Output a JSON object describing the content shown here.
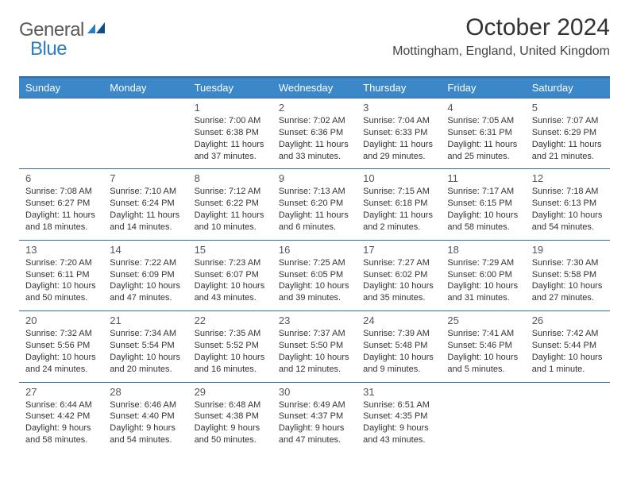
{
  "meta": {
    "logo_general": "General",
    "logo_blue": "Blue",
    "month_title": "October 2024",
    "location": "Mottingham, England, United Kingdom"
  },
  "colors": {
    "header_bg": "#3b87c8",
    "header_border": "#2f6aa0",
    "logo_blue": "#2a7dc0",
    "text": "#333333"
  },
  "day_names": [
    "Sunday",
    "Monday",
    "Tuesday",
    "Wednesday",
    "Thursday",
    "Friday",
    "Saturday"
  ],
  "weeks": [
    [
      null,
      null,
      {
        "n": "1",
        "sr": "7:00 AM",
        "ss": "6:38 PM",
        "dl": "11 hours and 37 minutes."
      },
      {
        "n": "2",
        "sr": "7:02 AM",
        "ss": "6:36 PM",
        "dl": "11 hours and 33 minutes."
      },
      {
        "n": "3",
        "sr": "7:04 AM",
        "ss": "6:33 PM",
        "dl": "11 hours and 29 minutes."
      },
      {
        "n": "4",
        "sr": "7:05 AM",
        "ss": "6:31 PM",
        "dl": "11 hours and 25 minutes."
      },
      {
        "n": "5",
        "sr": "7:07 AM",
        "ss": "6:29 PM",
        "dl": "11 hours and 21 minutes."
      }
    ],
    [
      {
        "n": "6",
        "sr": "7:08 AM",
        "ss": "6:27 PM",
        "dl": "11 hours and 18 minutes."
      },
      {
        "n": "7",
        "sr": "7:10 AM",
        "ss": "6:24 PM",
        "dl": "11 hours and 14 minutes."
      },
      {
        "n": "8",
        "sr": "7:12 AM",
        "ss": "6:22 PM",
        "dl": "11 hours and 10 minutes."
      },
      {
        "n": "9",
        "sr": "7:13 AM",
        "ss": "6:20 PM",
        "dl": "11 hours and 6 minutes."
      },
      {
        "n": "10",
        "sr": "7:15 AM",
        "ss": "6:18 PM",
        "dl": "11 hours and 2 minutes."
      },
      {
        "n": "11",
        "sr": "7:17 AM",
        "ss": "6:15 PM",
        "dl": "10 hours and 58 minutes."
      },
      {
        "n": "12",
        "sr": "7:18 AM",
        "ss": "6:13 PM",
        "dl": "10 hours and 54 minutes."
      }
    ],
    [
      {
        "n": "13",
        "sr": "7:20 AM",
        "ss": "6:11 PM",
        "dl": "10 hours and 50 minutes."
      },
      {
        "n": "14",
        "sr": "7:22 AM",
        "ss": "6:09 PM",
        "dl": "10 hours and 47 minutes."
      },
      {
        "n": "15",
        "sr": "7:23 AM",
        "ss": "6:07 PM",
        "dl": "10 hours and 43 minutes."
      },
      {
        "n": "16",
        "sr": "7:25 AM",
        "ss": "6:05 PM",
        "dl": "10 hours and 39 minutes."
      },
      {
        "n": "17",
        "sr": "7:27 AM",
        "ss": "6:02 PM",
        "dl": "10 hours and 35 minutes."
      },
      {
        "n": "18",
        "sr": "7:29 AM",
        "ss": "6:00 PM",
        "dl": "10 hours and 31 minutes."
      },
      {
        "n": "19",
        "sr": "7:30 AM",
        "ss": "5:58 PM",
        "dl": "10 hours and 27 minutes."
      }
    ],
    [
      {
        "n": "20",
        "sr": "7:32 AM",
        "ss": "5:56 PM",
        "dl": "10 hours and 24 minutes."
      },
      {
        "n": "21",
        "sr": "7:34 AM",
        "ss": "5:54 PM",
        "dl": "10 hours and 20 minutes."
      },
      {
        "n": "22",
        "sr": "7:35 AM",
        "ss": "5:52 PM",
        "dl": "10 hours and 16 minutes."
      },
      {
        "n": "23",
        "sr": "7:37 AM",
        "ss": "5:50 PM",
        "dl": "10 hours and 12 minutes."
      },
      {
        "n": "24",
        "sr": "7:39 AM",
        "ss": "5:48 PM",
        "dl": "10 hours and 9 minutes."
      },
      {
        "n": "25",
        "sr": "7:41 AM",
        "ss": "5:46 PM",
        "dl": "10 hours and 5 minutes."
      },
      {
        "n": "26",
        "sr": "7:42 AM",
        "ss": "5:44 PM",
        "dl": "10 hours and 1 minute."
      }
    ],
    [
      {
        "n": "27",
        "sr": "6:44 AM",
        "ss": "4:42 PM",
        "dl": "9 hours and 58 minutes."
      },
      {
        "n": "28",
        "sr": "6:46 AM",
        "ss": "4:40 PM",
        "dl": "9 hours and 54 minutes."
      },
      {
        "n": "29",
        "sr": "6:48 AM",
        "ss": "4:38 PM",
        "dl": "9 hours and 50 minutes."
      },
      {
        "n": "30",
        "sr": "6:49 AM",
        "ss": "4:37 PM",
        "dl": "9 hours and 47 minutes."
      },
      {
        "n": "31",
        "sr": "6:51 AM",
        "ss": "4:35 PM",
        "dl": "9 hours and 43 minutes."
      },
      null,
      null
    ]
  ],
  "labels": {
    "sunrise": "Sunrise:",
    "sunset": "Sunset:",
    "daylight": "Daylight:"
  }
}
